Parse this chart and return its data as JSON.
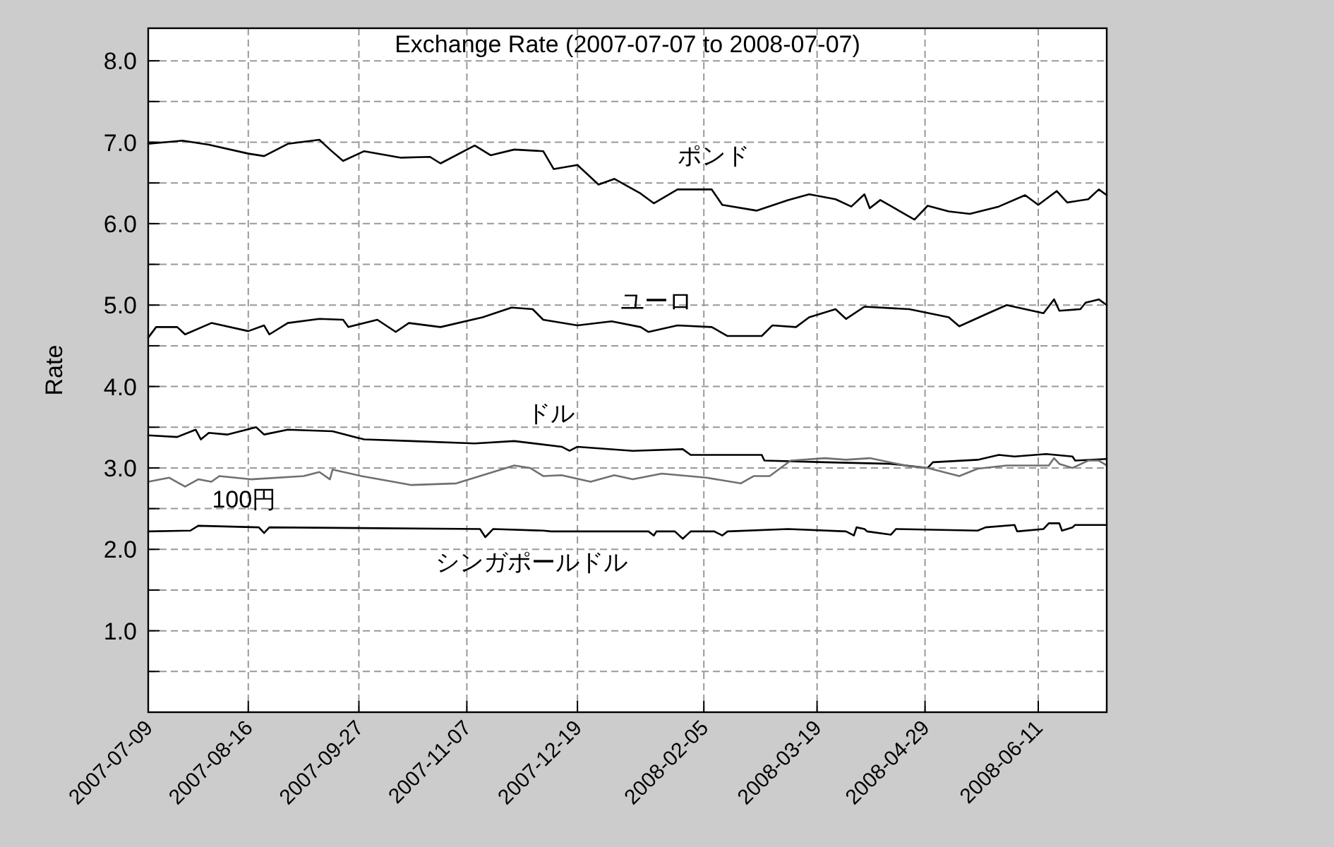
{
  "chart_data": {
    "type": "line",
    "title": "Exchange Rate (2007-07-07 to 2008-07-07)",
    "ylabel": "Rate",
    "xlim": [
      "2007-07-09",
      "2008-07-07"
    ],
    "ylim": [
      0,
      8.4
    ],
    "xticks": [
      "2007-07-09",
      "2007-08-16",
      "2007-09-27",
      "2007-11-07",
      "2007-12-19",
      "2008-02-05",
      "2008-03-19",
      "2008-04-29",
      "2008-06-11"
    ],
    "yticks": [
      {
        "value": 0,
        "label": null
      },
      {
        "value": 0.5,
        "label": null
      },
      {
        "value": 1,
        "label": "1.0"
      },
      {
        "value": 1.5,
        "label": null
      },
      {
        "value": 2,
        "label": "2.0"
      },
      {
        "value": 2.5,
        "label": null
      },
      {
        "value": 3,
        "label": "3.0"
      },
      {
        "value": 3.5,
        "label": null
      },
      {
        "value": 4,
        "label": "4.0"
      },
      {
        "value": 4.5,
        "label": null
      },
      {
        "value": 5,
        "label": "5.0"
      },
      {
        "value": 5.5,
        "label": null
      },
      {
        "value": 6,
        "label": "6.0"
      },
      {
        "value": 6.5,
        "label": null
      },
      {
        "value": 7,
        "label": "7.0"
      },
      {
        "value": 7.5,
        "label": null
      },
      {
        "value": 8,
        "label": "8.0"
      }
    ],
    "grid": true,
    "line_style": "solid",
    "marker": "none",
    "series": [
      {
        "name": "ポンド",
        "color": "#000000",
        "x": [
          "2007-07-09",
          "2007-07-22",
          "2007-08-01",
          "2007-08-16",
          "2007-08-22",
          "2007-08-31",
          "2007-09-12",
          "2007-09-16",
          "2007-09-21",
          "2007-09-29",
          "2007-10-13",
          "2007-10-24",
          "2007-10-28",
          "2007-11-10",
          "2007-11-16",
          "2007-11-25",
          "2007-12-06",
          "2007-12-10",
          "2007-12-19",
          "2007-12-27",
          "2008-01-02",
          "2008-01-12",
          "2008-01-17",
          "2008-01-26",
          "2008-02-08",
          "2008-02-12",
          "2008-02-25",
          "2008-03-08",
          "2008-03-16",
          "2008-03-26",
          "2008-04-01",
          "2008-04-06",
          "2008-04-08",
          "2008-04-12",
          "2008-04-25",
          "2008-04-30",
          "2008-05-08",
          "2008-05-16",
          "2008-05-27",
          "2008-06-06",
          "2008-06-11",
          "2008-06-18",
          "2008-06-22",
          "2008-06-30",
          "2008-07-04",
          "2008-07-07"
        ],
        "values": [
          6.98,
          7.02,
          6.97,
          6.86,
          6.83,
          6.98,
          7.03,
          6.91,
          6.77,
          6.89,
          6.81,
          6.82,
          6.74,
          6.96,
          6.84,
          6.91,
          6.89,
          6.67,
          6.72,
          6.48,
          6.55,
          6.37,
          6.25,
          6.42,
          6.42,
          6.23,
          6.16,
          6.29,
          6.36,
          6.3,
          6.21,
          6.36,
          6.19,
          6.29,
          6.05,
          6.22,
          6.15,
          6.12,
          6.21,
          6.35,
          6.23,
          6.4,
          6.26,
          6.3,
          6.42,
          6.35
        ]
      },
      {
        "name": "ユーロ",
        "color": "#000000",
        "x": [
          "2007-07-09",
          "2007-07-12",
          "2007-07-20",
          "2007-07-23",
          "2007-08-02",
          "2007-08-16",
          "2007-08-22",
          "2007-08-24",
          "2007-08-31",
          "2007-09-12",
          "2007-09-21",
          "2007-09-23",
          "2007-10-04",
          "2007-10-11",
          "2007-10-16",
          "2007-10-28",
          "2007-11-13",
          "2007-11-24",
          "2007-12-02",
          "2007-12-06",
          "2007-12-19",
          "2008-01-01",
          "2008-01-12",
          "2008-01-15",
          "2008-01-26",
          "2008-02-08",
          "2008-02-14",
          "2008-02-27",
          "2008-03-02",
          "2008-03-11",
          "2008-03-16",
          "2008-03-26",
          "2008-03-30",
          "2008-04-06",
          "2008-04-23",
          "2008-05-08",
          "2008-05-12",
          "2008-05-23",
          "2008-05-30",
          "2008-06-13",
          "2008-06-17",
          "2008-06-19",
          "2008-06-27",
          "2008-06-29",
          "2008-07-04",
          "2008-07-07"
        ],
        "values": [
          4.6,
          4.73,
          4.73,
          4.64,
          4.78,
          4.68,
          4.75,
          4.64,
          4.78,
          4.83,
          4.82,
          4.73,
          4.82,
          4.67,
          4.78,
          4.73,
          4.85,
          4.97,
          4.95,
          4.82,
          4.75,
          4.8,
          4.73,
          4.67,
          4.75,
          4.73,
          4.62,
          4.62,
          4.75,
          4.73,
          4.85,
          4.95,
          4.83,
          4.98,
          4.95,
          4.85,
          4.74,
          4.9,
          5.0,
          4.9,
          5.07,
          4.93,
          4.95,
          5.03,
          5.07,
          5.0
        ]
      },
      {
        "name": "ドル",
        "color": "#000000",
        "x": [
          "2007-07-09",
          "2007-07-20",
          "2007-07-27",
          "2007-07-29",
          "2007-08-01",
          "2007-08-08",
          "2007-08-19",
          "2007-08-22",
          "2007-08-31",
          "2007-09-17",
          "2007-09-29",
          "2007-10-17",
          "2007-11-10",
          "2007-11-25",
          "2007-12-13",
          "2007-12-16",
          "2007-12-19",
          "2008-01-09",
          "2008-01-28",
          "2008-01-31",
          "2008-02-27",
          "2008-02-28",
          "2008-03-22",
          "2008-04-16",
          "2008-04-30",
          "2008-05-02",
          "2008-05-19",
          "2008-05-27",
          "2008-06-02",
          "2008-06-14",
          "2008-06-24",
          "2008-06-25",
          "2008-07-07"
        ],
        "values": [
          3.4,
          3.38,
          3.47,
          3.35,
          3.43,
          3.41,
          3.5,
          3.41,
          3.47,
          3.45,
          3.35,
          3.33,
          3.3,
          3.33,
          3.26,
          3.21,
          3.26,
          3.21,
          3.23,
          3.16,
          3.16,
          3.09,
          3.07,
          3.05,
          3.0,
          3.07,
          3.1,
          3.16,
          3.14,
          3.17,
          3.14,
          3.09,
          3.11
        ]
      },
      {
        "name": "100円",
        "color": "#707070",
        "x": [
          "2007-07-09",
          "2007-07-17",
          "2007-07-23",
          "2007-07-28",
          "2007-08-02",
          "2007-08-05",
          "2007-08-17",
          "2007-09-06",
          "2007-09-12",
          "2007-09-16",
          "2007-09-17",
          "2007-09-28",
          "2007-10-10",
          "2007-10-17",
          "2007-11-03",
          "2007-11-25",
          "2007-12-01",
          "2007-12-06",
          "2007-12-13",
          "2007-12-24",
          "2008-01-02",
          "2008-01-09",
          "2008-01-20",
          "2008-02-06",
          "2008-02-19",
          "2008-02-24",
          "2008-03-01",
          "2008-03-09",
          "2008-03-22",
          "2008-03-30",
          "2008-04-08",
          "2008-04-23",
          "2008-04-30",
          "2008-05-12",
          "2008-05-19",
          "2008-05-30",
          "2008-06-15",
          "2008-06-17",
          "2008-06-19",
          "2008-06-24",
          "2008-06-30",
          "2008-07-04",
          "2008-07-07"
        ],
        "values": [
          2.83,
          2.88,
          2.77,
          2.86,
          2.83,
          2.9,
          2.86,
          2.9,
          2.95,
          2.86,
          2.98,
          2.9,
          2.83,
          2.79,
          2.81,
          3.03,
          3.0,
          2.9,
          2.91,
          2.83,
          2.91,
          2.86,
          2.93,
          2.88,
          2.81,
          2.9,
          2.9,
          3.09,
          3.12,
          3.1,
          3.12,
          3.02,
          3.0,
          2.9,
          2.99,
          3.03,
          3.03,
          3.12,
          3.05,
          3.0,
          3.09,
          3.09,
          3.03
        ]
      },
      {
        "name": "シンガポールドル",
        "color": "#000000",
        "x": [
          "2007-07-09",
          "2007-07-25",
          "2007-07-28",
          "2007-08-20",
          "2007-08-22",
          "2007-08-24",
          "2007-11-12",
          "2007-11-14",
          "2007-11-17",
          "2007-12-06",
          "2007-12-09",
          "2008-01-09",
          "2008-01-15",
          "2008-01-17",
          "2008-01-18",
          "2008-01-25",
          "2008-01-28",
          "2008-01-31",
          "2008-02-09",
          "2008-02-12",
          "2008-02-14",
          "2008-03-08",
          "2008-03-30",
          "2008-04-02",
          "2008-04-03",
          "2008-04-06",
          "2008-04-07",
          "2008-04-16",
          "2008-04-18",
          "2008-05-19",
          "2008-05-22",
          "2008-06-02",
          "2008-06-03",
          "2008-06-13",
          "2008-06-15",
          "2008-06-19",
          "2008-06-20",
          "2008-06-24",
          "2008-06-25",
          "2008-07-07"
        ],
        "values": [
          2.22,
          2.23,
          2.29,
          2.27,
          2.2,
          2.27,
          2.25,
          2.15,
          2.25,
          2.23,
          2.22,
          2.22,
          2.22,
          2.17,
          2.22,
          2.22,
          2.13,
          2.22,
          2.22,
          2.17,
          2.22,
          2.25,
          2.22,
          2.17,
          2.27,
          2.25,
          2.22,
          2.18,
          2.25,
          2.23,
          2.27,
          2.3,
          2.22,
          2.25,
          2.32,
          2.32,
          2.23,
          2.27,
          2.3,
          2.3
        ]
      }
    ]
  }
}
